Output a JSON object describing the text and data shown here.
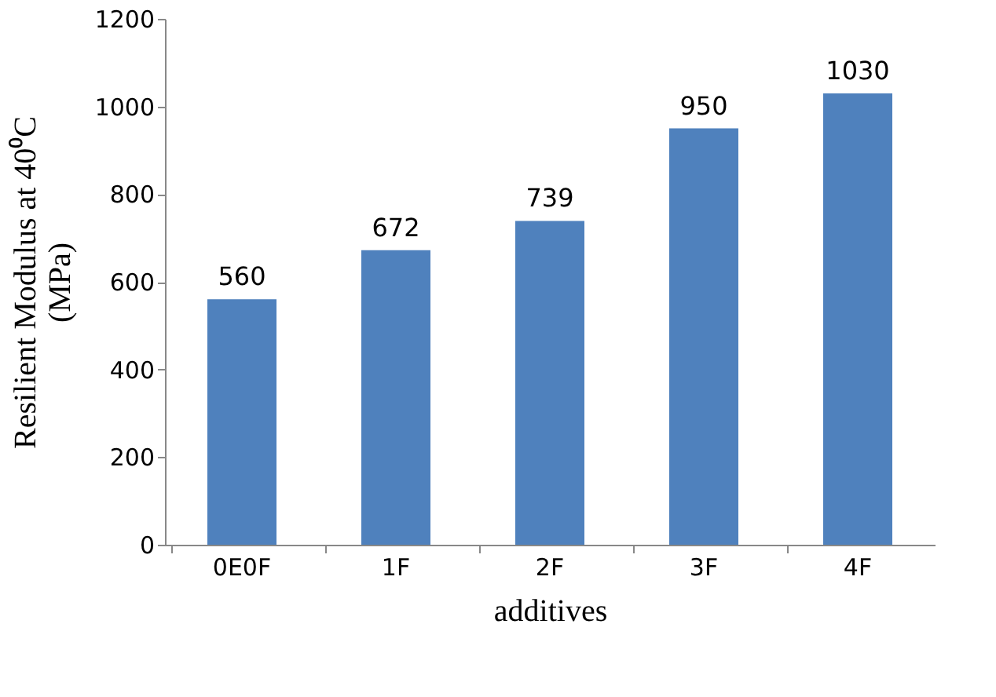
{
  "chart_data": {
    "type": "bar",
    "xlabel": "additives",
    "ylabel": "Resilient Modulus at 40⁰C\n(MPa)",
    "categories": [
      "0E0F",
      "1F",
      "2F",
      "3F",
      "4F"
    ],
    "values": [
      560,
      672,
      739,
      950,
      1030
    ],
    "color": "#4f81bd",
    "ylim": [
      0,
      1200
    ],
    "yticks": [
      0,
      200,
      400,
      600,
      800,
      1000,
      1200
    ],
    "grid": false,
    "data_labels": true
  }
}
